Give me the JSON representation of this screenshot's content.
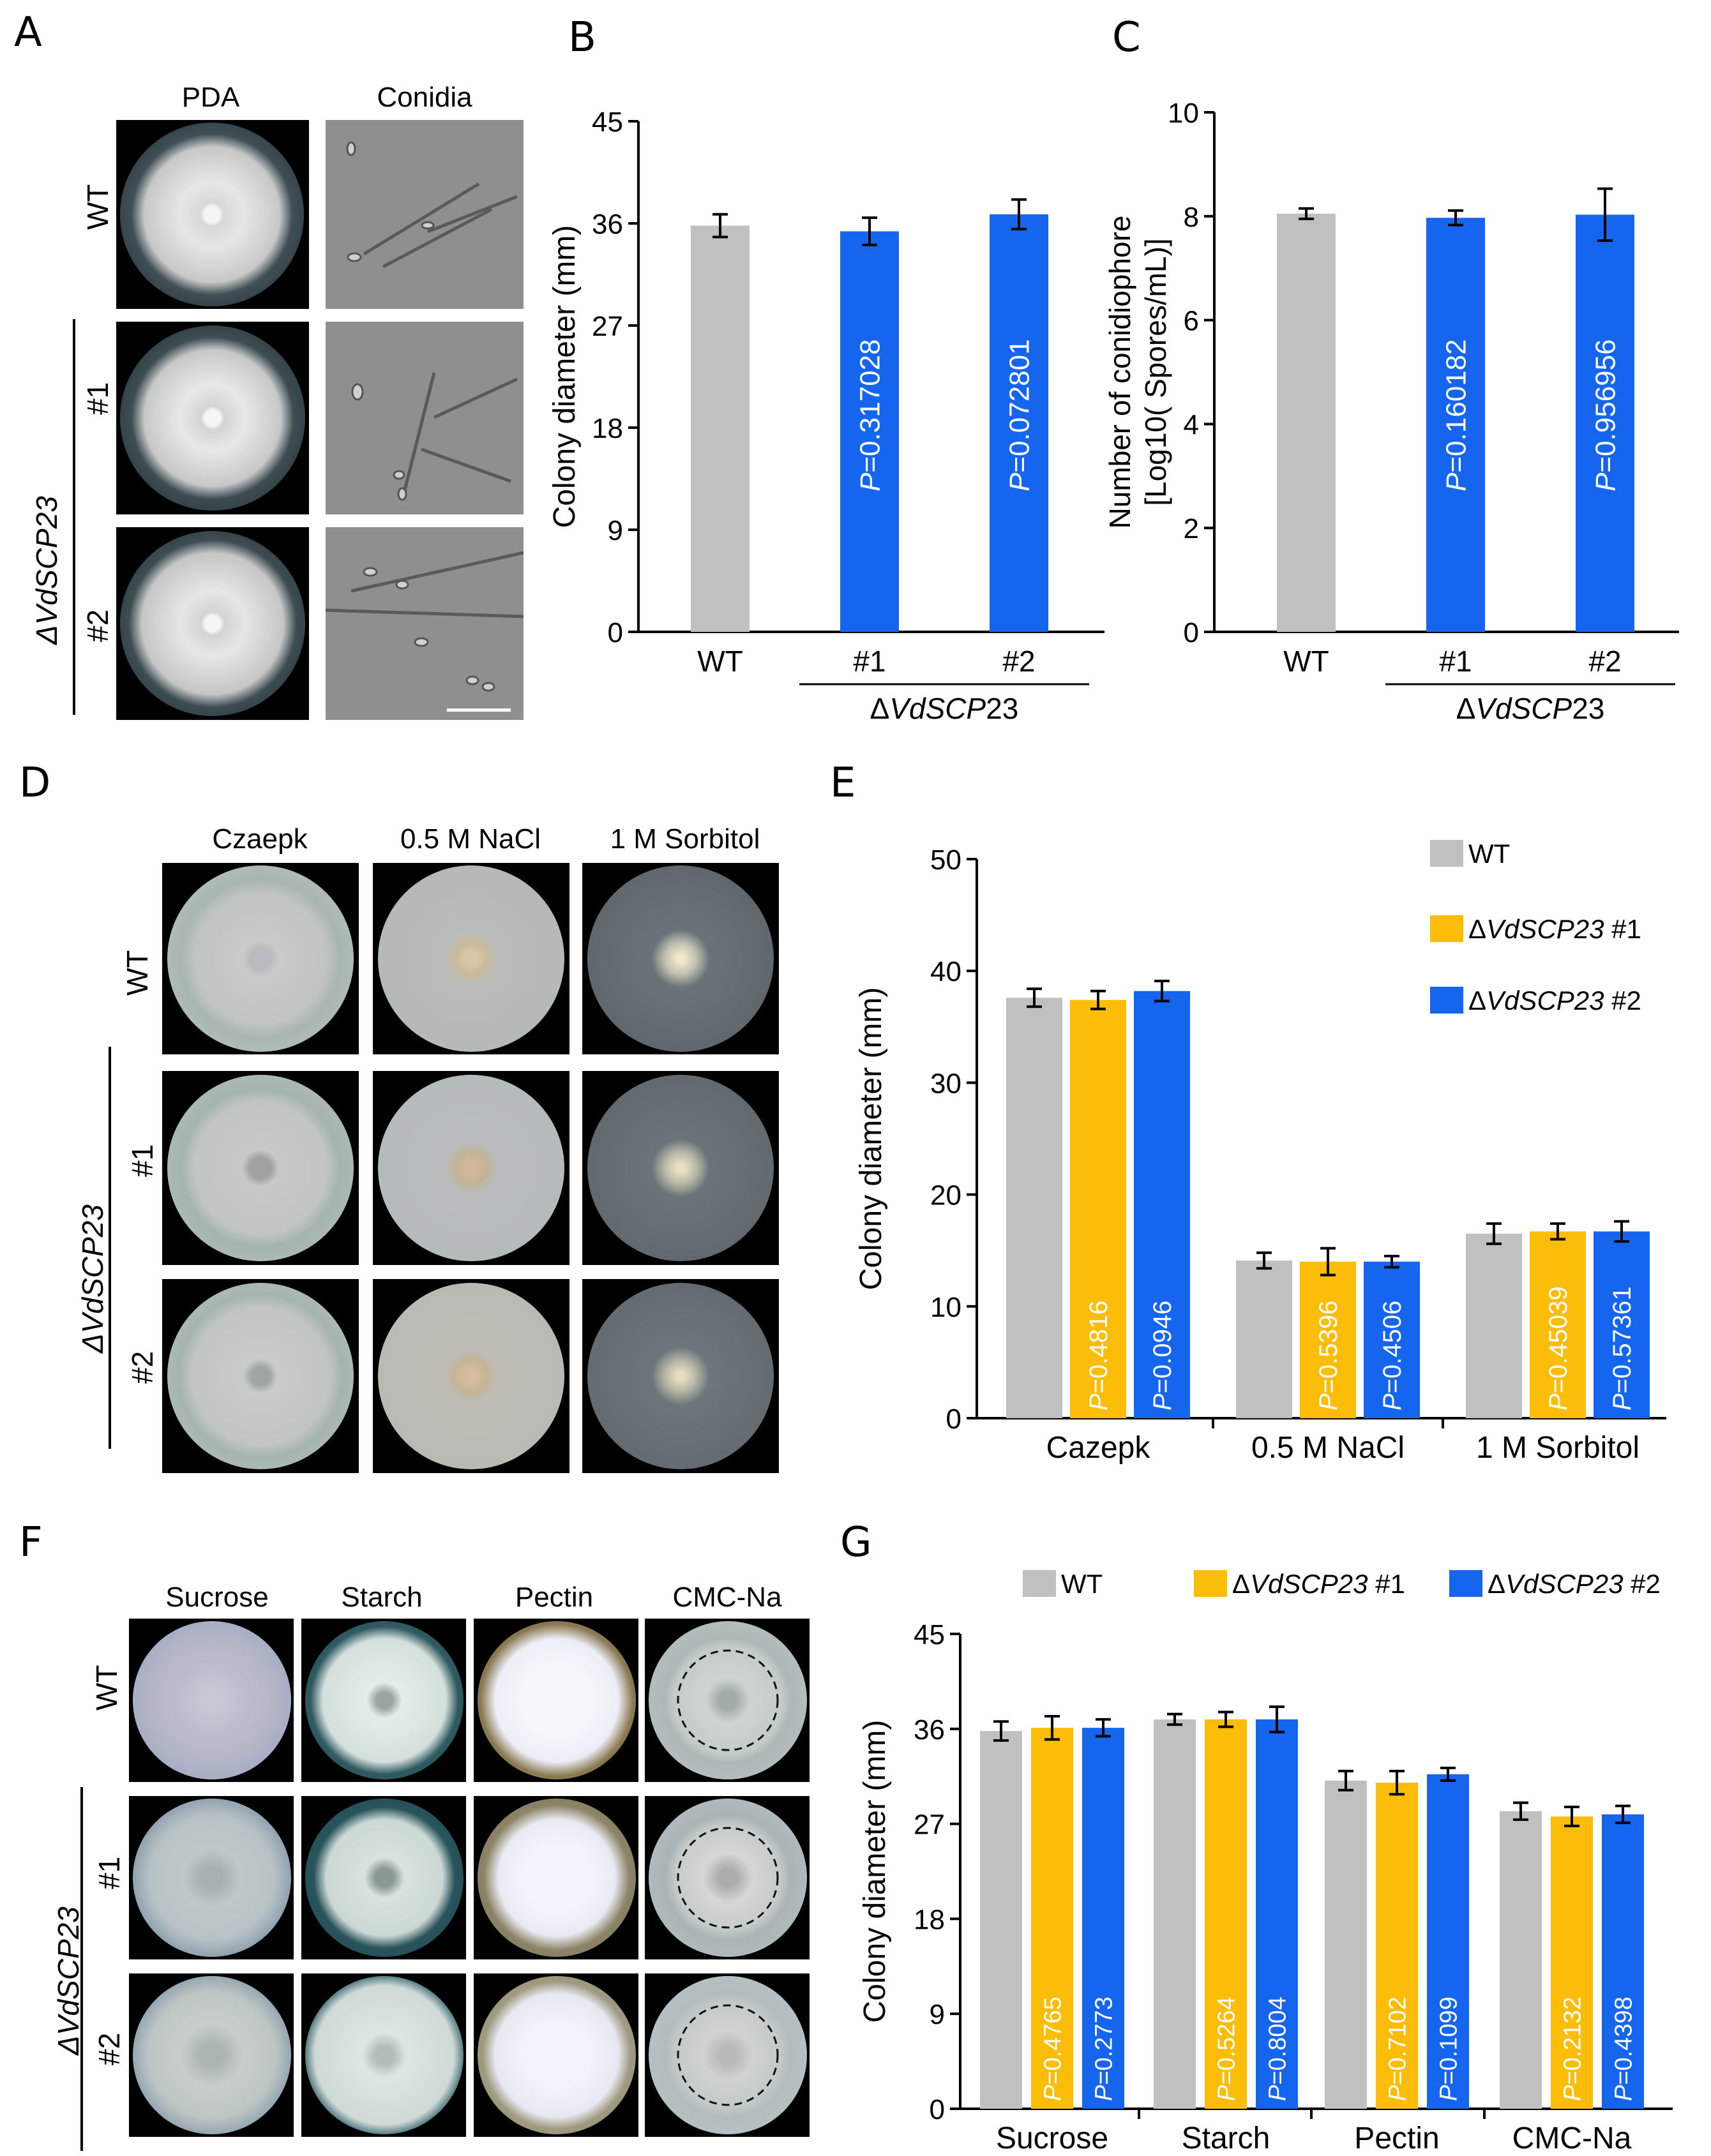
{
  "panels": {
    "A": {
      "label": "A",
      "columns": [
        "PDA",
        "Conidia"
      ],
      "rows": [
        "WT",
        "#1",
        "#2"
      ],
      "group_label": "ΔVdSCP23"
    },
    "B": {
      "label": "B"
    },
    "C": {
      "label": "C"
    },
    "D": {
      "label": "D",
      "columns": [
        "Czaepk",
        "0.5 M NaCl",
        "1 M Sorbitol"
      ],
      "rows": [
        "WT",
        "#1",
        "#2"
      ],
      "group_label": "ΔVdSCP23"
    },
    "E": {
      "label": "E"
    },
    "F": {
      "label": "F",
      "columns": [
        "Sucrose",
        "Starch",
        "Pectin",
        "CMC-Na"
      ],
      "rows": [
        "WT",
        "#1",
        "#2"
      ],
      "group_label": "ΔVdSCP23"
    },
    "G": {
      "label": "G"
    }
  },
  "colors": {
    "wt": "#c0c0c0",
    "m1_blue": "#1565ef",
    "m1_yellow": "#fbbd08",
    "m2": "#1565ef"
  },
  "chart_data": [
    {
      "id": "B",
      "type": "bar",
      "categories": [
        "WT",
        "#1",
        "#2"
      ],
      "group_label": "ΔVdSCP23",
      "values": [
        35.8,
        35.3,
        36.8
      ],
      "errors": [
        1.0,
        1.2,
        1.3
      ],
      "p_values": [
        "",
        "P=0.317028",
        "P=0.072801"
      ],
      "ylabel": "Colony diameter (mm)",
      "ylim": [
        0,
        45
      ],
      "yticks": [
        "0",
        "9",
        "18",
        "27",
        "36",
        "45"
      ]
    },
    {
      "id": "C",
      "type": "bar",
      "categories": [
        "WT",
        "#1",
        "#2"
      ],
      "group_label": "ΔVdSCP23",
      "values": [
        8.05,
        7.97,
        8.03
      ],
      "errors": [
        0.1,
        0.14,
        0.5
      ],
      "p_values": [
        "",
        "P=0.160182",
        "P=0.956956"
      ],
      "ylabel_lines": [
        "Number of conidiophore",
        "[Log10( Spores/mL)]"
      ],
      "ylim": [
        0,
        10
      ],
      "yticks": [
        "0",
        "2",
        "4",
        "6",
        "8",
        "10"
      ]
    },
    {
      "id": "E",
      "type": "bar",
      "categories": [
        "Cazepk",
        "0.5 M NaCl",
        "1 M Sorbitol"
      ],
      "series": [
        {
          "name": "WT",
          "values": [
            37.6,
            14.1,
            16.5
          ],
          "errors": [
            0.8,
            0.7,
            0.9
          ],
          "p_values": [
            "",
            "",
            ""
          ]
        },
        {
          "name": "ΔVdSCP23 #1",
          "values": [
            37.4,
            14.0,
            16.7
          ],
          "errors": [
            0.8,
            1.2,
            0.7
          ],
          "p_values": [
            "P=0.4816",
            "P=0.5396",
            "P=0.45039"
          ]
        },
        {
          "name": "ΔVdSCP23 #2",
          "values": [
            38.2,
            14.0,
            16.7
          ],
          "errors": [
            0.9,
            0.5,
            0.9
          ],
          "p_values": [
            "P=0.0946",
            "P=0.4506",
            "P=0.57361"
          ]
        }
      ],
      "legend": [
        "WT",
        "ΔVdSCP23 #1",
        "ΔVdSCP23 #2"
      ],
      "legend_position": "top-right",
      "ylabel": "Colony diameter (mm)",
      "ylim": [
        0,
        50
      ],
      "yticks": [
        "0",
        "10",
        "20",
        "30",
        "40",
        "50"
      ]
    },
    {
      "id": "G",
      "type": "bar",
      "categories": [
        "Sucrose",
        "Starch",
        "Pectin",
        "CMC-Na"
      ],
      "series": [
        {
          "name": "WT",
          "values": [
            35.8,
            36.9,
            31.1,
            28.2
          ],
          "errors": [
            0.9,
            0.5,
            0.9,
            0.8
          ],
          "p_values": [
            "",
            "",
            "",
            ""
          ]
        },
        {
          "name": "ΔVdSCP23 #1",
          "values": [
            36.1,
            36.9,
            30.9,
            27.7
          ],
          "errors": [
            1.1,
            0.7,
            1.1,
            0.9
          ],
          "p_values": [
            "P=0.4765",
            "P=0.5264",
            "P=0.7102",
            "P=0.2132"
          ]
        },
        {
          "name": "ΔVdSCP23 #2",
          "values": [
            36.1,
            36.9,
            31.7,
            27.9
          ],
          "errors": [
            0.8,
            1.2,
            0.6,
            0.8
          ],
          "p_values": [
            "P=0.2773",
            "P=0.8004",
            "P=0.1099",
            "P=0.4398"
          ]
        }
      ],
      "legend": [
        "WT",
        "ΔVdSCP23 #1",
        "ΔVdSCP23 #2"
      ],
      "legend_position": "top",
      "ylabel": "Colony diameter (mm)",
      "ylim": [
        0,
        45
      ],
      "yticks": [
        "0",
        "9",
        "18",
        "27",
        "36",
        "45"
      ]
    }
  ]
}
